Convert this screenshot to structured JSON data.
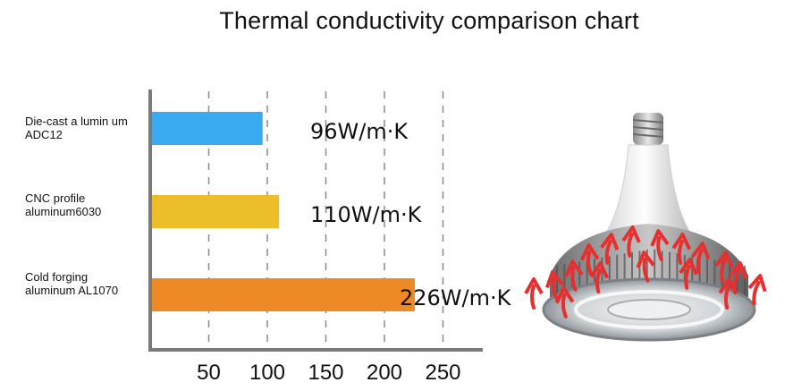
{
  "title": "Thermal conductivity comparison chart",
  "chart_data": {
    "type": "bar",
    "orientation": "horizontal",
    "title": "Thermal conductivity comparison chart",
    "categories": [
      {
        "line1": "Die-cast a lumin um",
        "line2": "ADC12"
      },
      {
        "line1": "CNC profile",
        "line2": "aluminum6030"
      },
      {
        "line1": "Cold forging",
        "line2": "aluminum AL1070"
      }
    ],
    "values": [
      96,
      110,
      226
    ],
    "value_labels": [
      "96W/m·K",
      "110W/m·K",
      "226W/m·K"
    ],
    "colors": [
      "#3aaaf0",
      "#ecbe2a",
      "#ee8a26"
    ],
    "xticks": [
      50,
      100,
      150,
      200,
      250
    ],
    "xlim": [
      0,
      283
    ],
    "grid": "vertical dashed",
    "legend": "none"
  },
  "illustration": {
    "subject": "LED high-bay bulb with radiating heat arrows",
    "arrow_color": "#e63030"
  }
}
